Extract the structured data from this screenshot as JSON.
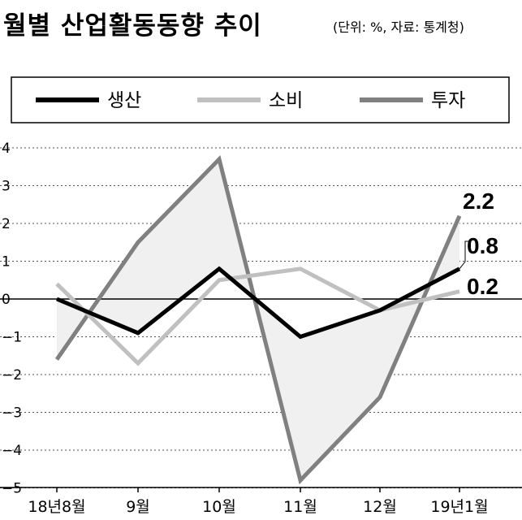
{
  "header": {
    "title": "월별 산업활동동향 추이",
    "subtitle": "(단위: %, 자료: 통계청)"
  },
  "chart_data": {
    "type": "line",
    "title": "월별 산업활동동향 추이",
    "subtitle": "(단위: %, 자료: 통계청)",
    "xlabel": "",
    "ylabel": "",
    "categories": [
      "18년8월",
      "9월",
      "10월",
      "11월",
      "12월",
      "19년1월"
    ],
    "ylim": [
      -5,
      4
    ],
    "yticks": [
      4,
      3,
      2,
      1,
      0,
      -1,
      -2,
      -3,
      -4,
      -5
    ],
    "grid": "horizontal-dashed",
    "legend_position": "top",
    "series": [
      {
        "name": "생산",
        "values": [
          0.0,
          -0.9,
          0.8,
          -1.0,
          -0.3,
          0.8
        ],
        "color": "#000000"
      },
      {
        "name": "소비",
        "values": [
          0.4,
          -1.7,
          0.5,
          0.8,
          -0.3,
          0.2
        ],
        "color": "#c0c0c0"
      },
      {
        "name": "투자",
        "values": [
          -1.6,
          1.5,
          3.7,
          -4.8,
          -2.6,
          2.2
        ],
        "color": "#808080"
      }
    ],
    "fill_between": {
      "series_a": "생산",
      "series_b": "투자",
      "color": "#f0f0f0"
    },
    "annotations": [
      {
        "text": "2.2",
        "series": "투자",
        "index": 5
      },
      {
        "text": "0.8",
        "series": "생산",
        "index": 5
      },
      {
        "text": "0.2",
        "series": "소비",
        "index": 5
      }
    ]
  }
}
